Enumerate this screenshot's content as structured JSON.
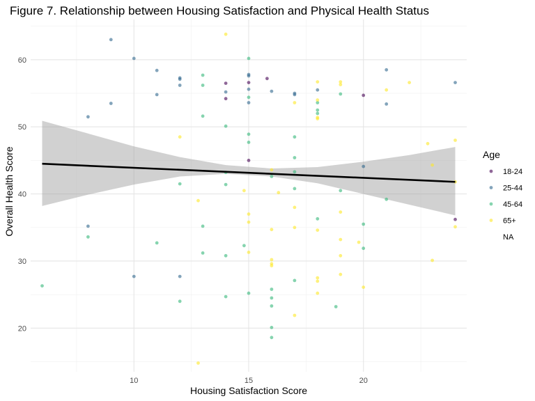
{
  "chart_data": {
    "type": "scatter",
    "title": "Figure 7. Relationship between Housing Satisfaction and Physical Health Status",
    "xlabel": "Housing Satisfaction Score",
    "ylabel": "Overall Health Score",
    "xlim": [
      5.5,
      24.5
    ],
    "ylim": [
      13.5,
      66
    ],
    "x_ticks": [
      10,
      15,
      20
    ],
    "y_ticks": [
      20,
      30,
      40,
      50,
      60
    ],
    "grid": true,
    "legend": {
      "title": "Age",
      "placement": "right",
      "entries": [
        {
          "label": "18-24",
          "color": "#440154"
        },
        {
          "label": "25-44",
          "color": "#31688e"
        },
        {
          "label": "45-64",
          "color": "#35b779"
        },
        {
          "label": "65+",
          "color": "#fde725"
        },
        {
          "label": "NA",
          "color": ""
        }
      ]
    },
    "series": [
      {
        "name": "18-24",
        "color": "#440154",
        "points": [
          [
            14,
            56.5
          ],
          [
            14,
            54.2
          ],
          [
            15,
            56.6
          ],
          [
            15,
            45
          ],
          [
            15.8,
            57.2
          ],
          [
            20,
            54.7
          ],
          [
            24,
            36.2
          ]
        ]
      },
      {
        "name": "25-44",
        "color": "#31688e",
        "points": [
          [
            8,
            51.5
          ],
          [
            8,
            35.2
          ],
          [
            9,
            63
          ],
          [
            9,
            53.5
          ],
          [
            10,
            60.2
          ],
          [
            10,
            27.7
          ],
          [
            11,
            58.4
          ],
          [
            11,
            54.8
          ],
          [
            12,
            57.3
          ],
          [
            12,
            57.1
          ],
          [
            12,
            56.2
          ],
          [
            12,
            27.7
          ],
          [
            14,
            55.2
          ],
          [
            15,
            57.8
          ],
          [
            15,
            57.6
          ],
          [
            15,
            55.6
          ],
          [
            15,
            53.6
          ],
          [
            16,
            55.3
          ],
          [
            17,
            55
          ],
          [
            17,
            54.8
          ],
          [
            18,
            55.5
          ],
          [
            20,
            44.1
          ],
          [
            21,
            58.5
          ],
          [
            21,
            53.4
          ],
          [
            24,
            56.6
          ]
        ]
      },
      {
        "name": "45-64",
        "color": "#35b779",
        "points": [
          [
            6,
            26.3
          ],
          [
            8,
            33.6
          ],
          [
            11,
            32.7
          ],
          [
            12,
            41.5
          ],
          [
            12,
            24
          ],
          [
            13,
            57.7
          ],
          [
            13,
            56.2
          ],
          [
            13,
            51.6
          ],
          [
            13,
            35.2
          ],
          [
            13,
            31.2
          ],
          [
            14,
            50.1
          ],
          [
            14,
            43.2
          ],
          [
            14,
            41.4
          ],
          [
            14,
            30.8
          ],
          [
            14,
            24.7
          ],
          [
            14.8,
            32.3
          ],
          [
            15,
            60.2
          ],
          [
            15,
            54.4
          ],
          [
            15,
            48.9
          ],
          [
            15,
            47.7
          ],
          [
            15,
            25.2
          ],
          [
            16,
            42.6
          ],
          [
            16,
            25.8
          ],
          [
            16,
            24.5
          ],
          [
            16,
            23.3
          ],
          [
            16,
            20.1
          ],
          [
            16,
            18.6
          ],
          [
            17,
            48.5
          ],
          [
            17,
            45.4
          ],
          [
            17,
            43.3
          ],
          [
            17,
            40.8
          ],
          [
            17,
            27.1
          ],
          [
            18,
            53.6
          ],
          [
            18,
            52.5
          ],
          [
            18,
            52
          ],
          [
            18,
            36.3
          ],
          [
            18.8,
            23.2
          ],
          [
            19,
            54.9
          ],
          [
            19,
            40.5
          ],
          [
            20,
            35.5
          ],
          [
            20,
            31.9
          ],
          [
            21,
            39.2
          ]
        ]
      },
      {
        "name": "65+",
        "color": "#fde725",
        "points": [
          [
            12,
            48.5
          ],
          [
            12.8,
            39
          ],
          [
            12.8,
            14.8
          ],
          [
            14,
            63.8
          ],
          [
            14.8,
            40.5
          ],
          [
            15,
            37
          ],
          [
            15,
            35.8
          ],
          [
            15,
            31.3
          ],
          [
            16,
            43.6
          ],
          [
            16,
            34.7
          ],
          [
            16,
            30.2
          ],
          [
            16,
            29.6
          ],
          [
            16,
            29.3
          ],
          [
            16.3,
            40.2
          ],
          [
            17,
            53.6
          ],
          [
            17,
            38
          ],
          [
            17,
            35
          ],
          [
            17,
            21.9
          ],
          [
            18,
            56.7
          ],
          [
            18,
            54
          ],
          [
            18,
            51.4
          ],
          [
            18,
            51.2
          ],
          [
            18,
            34.6
          ],
          [
            18,
            27.5
          ],
          [
            18,
            27
          ],
          [
            18,
            25.2
          ],
          [
            19,
            56.7
          ],
          [
            19,
            56.3
          ],
          [
            19,
            37.3
          ],
          [
            19,
            33.2
          ],
          [
            19,
            30.8
          ],
          [
            19,
            28
          ],
          [
            19.8,
            32.8
          ],
          [
            20,
            26.1
          ],
          [
            21,
            55.5
          ],
          [
            22,
            56.6
          ],
          [
            22.8,
            47.5
          ],
          [
            23,
            44.3
          ],
          [
            23,
            30.1
          ],
          [
            24,
            48
          ],
          [
            24,
            41.8
          ],
          [
            24,
            35.1
          ]
        ]
      }
    ],
    "trend_line": {
      "x": [
        6,
        24
      ],
      "y": [
        44.5,
        41.8
      ]
    },
    "confidence_band": {
      "x": [
        6,
        8,
        10,
        12,
        14,
        16,
        18,
        20,
        22,
        24
      ],
      "lower": [
        38.2,
        39.9,
        41.4,
        42.6,
        43.0,
        42.6,
        41.6,
        40.0,
        38.4,
        36.8
      ],
      "upper": [
        50.9,
        49.0,
        47.1,
        45.5,
        44.3,
        43.8,
        44.0,
        44.8,
        45.8,
        47.0
      ]
    }
  }
}
